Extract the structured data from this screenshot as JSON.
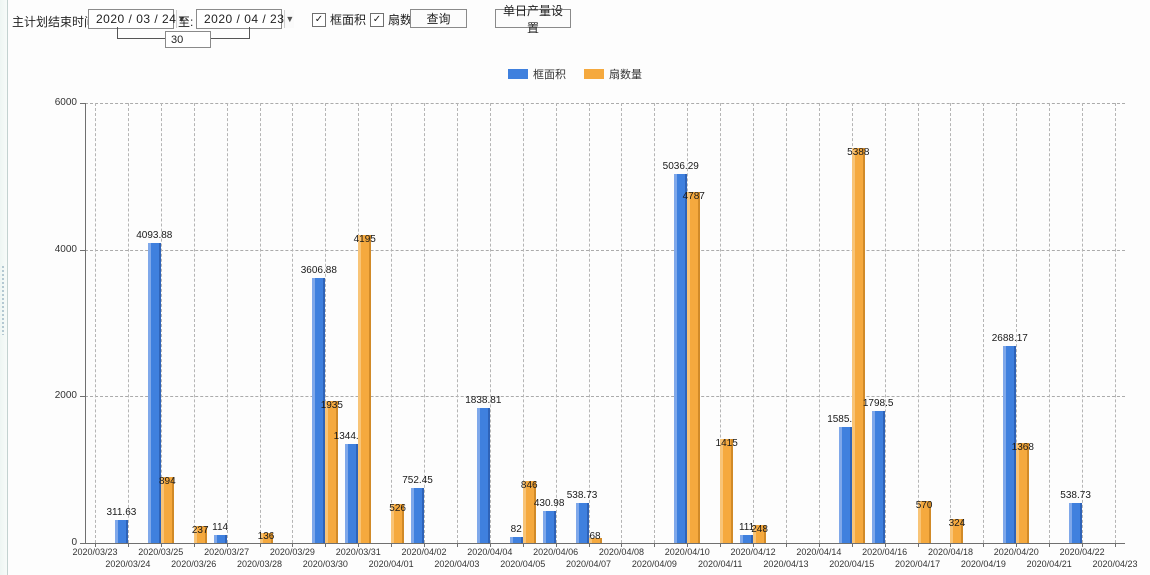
{
  "toolbar": {
    "label": "主计划结束时间:",
    "date_from": "2020 / 03 / 24",
    "to_label": "至:",
    "date_to": "2020 / 04 / 23",
    "interval_value": "30",
    "checkbox_frame_area": "框面积",
    "checkbox_fan_count": "扇数量",
    "checkbox_glyph": "✓",
    "dropdown_glyph": "▼",
    "query_button": "查询",
    "daily_output_button": "单日产量设置"
  },
  "legend": {
    "items": [
      {
        "label": "框面积",
        "color": "#3F80DE"
      },
      {
        "label": "扇数量",
        "color": "#F5A93E"
      }
    ]
  },
  "chart_data": {
    "type": "bar",
    "title": "",
    "xlabel": "",
    "ylabel": "",
    "ylim": [
      0,
      6000
    ],
    "yticks": [
      0,
      2000,
      4000,
      6000
    ],
    "grid": "dashed",
    "legend_position": "top",
    "categories": [
      "2020/03/23",
      "2020/03/24",
      "2020/03/25",
      "2020/03/26",
      "2020/03/27",
      "2020/03/28",
      "2020/03/29",
      "2020/03/30",
      "2020/03/31",
      "2020/04/01",
      "2020/04/02",
      "2020/04/03",
      "2020/04/04",
      "2020/04/05",
      "2020/04/06",
      "2020/04/07",
      "2020/04/08",
      "2020/04/09",
      "2020/04/10",
      "2020/04/11",
      "2020/04/12",
      "2020/04/13",
      "2020/04/14",
      "2020/04/15",
      "2020/04/16",
      "2020/04/17",
      "2020/04/18",
      "2020/04/19",
      "2020/04/20",
      "2020/04/21",
      "2020/04/22",
      "2020/04/23"
    ],
    "series": [
      {
        "name": "框面积",
        "color": "#3F80DE",
        "color_light": "#7FA8EA",
        "color_dark": "#2E63B8",
        "values": [
          null,
          311.63,
          4093.88,
          null,
          114,
          null,
          null,
          3606.88,
          1344.95,
          null,
          752.45,
          null,
          1838.81,
          82,
          430.98,
          538.73,
          null,
          null,
          5036.29,
          null,
          111,
          null,
          null,
          1585.96,
          1798.5,
          null,
          null,
          null,
          2688.17,
          null,
          538.73,
          null
        ]
      },
      {
        "name": "扇数量",
        "color": "#F5A93E",
        "color_light": "#F8C477",
        "color_dark": "#D18A28",
        "values": [
          null,
          null,
          894,
          237,
          null,
          136,
          null,
          1935,
          4195,
          526,
          null,
          null,
          null,
          846,
          null,
          68,
          null,
          null,
          4787,
          1415,
          248,
          null,
          null,
          5388,
          null,
          570,
          324,
          null,
          1368,
          null,
          null,
          null
        ]
      }
    ]
  }
}
